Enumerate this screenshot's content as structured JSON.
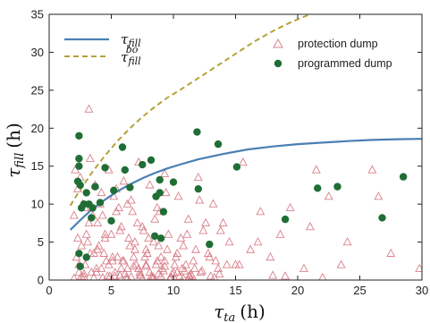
{
  "chart_data": {
    "type": "scatter",
    "xlabel": {
      "main": "τ",
      "sub": "ta",
      "unit": "(h)"
    },
    "ylabel": {
      "main": "τ",
      "sub": "fill",
      "unit": "(h)"
    },
    "xlim": [
      0,
      30
    ],
    "ylim": [
      0,
      35
    ],
    "xticks": [
      "0",
      "5",
      "10",
      "15",
      "20",
      "25",
      "30"
    ],
    "yticks": [
      "0",
      "5",
      "10",
      "15",
      "20",
      "25",
      "30",
      "35"
    ],
    "grid": false,
    "legends": {
      "curves": {
        "placement": "top-left",
        "entries": [
          {
            "main": "τ",
            "sub": "fill",
            "sup": "",
            "color": "#4a7fb5",
            "dash": "solid"
          },
          {
            "main": "τ",
            "sub": "fill",
            "sup": "bo",
            "color": "#b5a23a",
            "dash": "dashed"
          }
        ]
      },
      "points": {
        "placement": "top-right",
        "entries": [
          {
            "label": "protection dump",
            "marker": "triangle",
            "color": "#d9808a"
          },
          {
            "label": "programmed dump",
            "marker": "circle",
            "color": "#1f6e36"
          }
        ]
      }
    },
    "series": [
      {
        "name": "τ_fill",
        "type": "line",
        "color": "#4a7fb5",
        "x": [
          1.7,
          2.5,
          3.5,
          4.5,
          5.5,
          6.5,
          7.5,
          8.5,
          9.5,
          10.5,
          12,
          14,
          16,
          18,
          20,
          22,
          24,
          26,
          28,
          30
        ],
        "y": [
          6.6,
          7.9,
          9.4,
          10.6,
          11.7,
          12.6,
          13.4,
          14.1,
          14.7,
          15.2,
          15.9,
          16.6,
          17.2,
          17.6,
          17.9,
          18.1,
          18.3,
          18.45,
          18.55,
          18.6
        ]
      },
      {
        "name": "τ_fill^bo",
        "type": "line",
        "color": "#b5a23a",
        "x": [
          1.7,
          2.5,
          3.5,
          4.5,
          5.5,
          6.5,
          7.5,
          8.5,
          9.5,
          10.5,
          12,
          13.5,
          15,
          16.5,
          18,
          19.5,
          21
        ],
        "y": [
          9.8,
          11.9,
          14.3,
          16.4,
          18.3,
          20.0,
          21.5,
          22.8,
          24.0,
          25.0,
          26.6,
          28.2,
          29.8,
          31.4,
          32.8,
          34.0,
          35.0
        ]
      },
      {
        "name": "protection dump",
        "type": "scatter",
        "marker": "triangle",
        "color": "#d9808a",
        "x": [
          3.2,
          2.0,
          2.3,
          2.6,
          2.9,
          3.3,
          3.6,
          3.9,
          4.2,
          4.5,
          4.8,
          5.1,
          5.4,
          5.7,
          6.0,
          6.3,
          6.6,
          6.9,
          7.2,
          7.5,
          7.8,
          8.1,
          8.4,
          8.7,
          9.0,
          9.3,
          9.6,
          10.0,
          10.4,
          10.8,
          11.2,
          11.6,
          12.0,
          12.4,
          12.8,
          13.2,
          13.6,
          14.0,
          14.5,
          15.0,
          15.6,
          16.2,
          17.0,
          17.8,
          18.6,
          19.4,
          20.5,
          21.5,
          22.5,
          24.0,
          26.0,
          27.5,
          29.8,
          2.1,
          2.4,
          2.7,
          3.0,
          3.4,
          3.7,
          4.0,
          4.3,
          4.6,
          4.9,
          5.2,
          5.5,
          5.8,
          6.1,
          6.4,
          6.7,
          7.0,
          7.3,
          7.6,
          7.9,
          8.2,
          8.5,
          8.8,
          9.1,
          9.4,
          9.8,
          10.2,
          10.6,
          11.0,
          11.4,
          11.8,
          12.2,
          12.6,
          13.0,
          13.4,
          13.8,
          2.2,
          2.5,
          2.8,
          3.1,
          3.5,
          3.8,
          4.1,
          4.4,
          4.7,
          5.0,
          5.3,
          5.6,
          5.9,
          6.2,
          6.5,
          6.8,
          7.1,
          7.4,
          7.7,
          8.0,
          8.3,
          8.6,
          8.9,
          9.2,
          9.5,
          9.9,
          10.3,
          10.7,
          11.1,
          11.5,
          12.1,
          12.9,
          13.7,
          15.3,
          16.8,
          19.0,
          21.0,
          23.5,
          26.5,
          2.3,
          2.6,
          2.9,
          3.2,
          3.6,
          3.9,
          4.2,
          4.5,
          4.8,
          5.1,
          5.4,
          5.7,
          6.0,
          6.3,
          6.6,
          6.9,
          7.2,
          7.5,
          7.8,
          8.1,
          8.4,
          8.7,
          9.0,
          9.3,
          9.7,
          10.1,
          10.5,
          10.9,
          11.3,
          11.7,
          2.0,
          2.4,
          2.8,
          3.3,
          3.8,
          4.3,
          4.8,
          5.3,
          5.8,
          6.3,
          6.8,
          7.3,
          7.8,
          8.3,
          8.8,
          9.3,
          9.8,
          10.3,
          10.8,
          11.3,
          12.3,
          13.3,
          14.3,
          18.0,
          22.0
        ],
        "y": [
          22.5,
          8.5,
          12.0,
          4.5,
          9.5,
          16.0,
          3.5,
          7.5,
          11.5,
          5.5,
          14.5,
          2.5,
          9.0,
          6.5,
          13.0,
          1.5,
          10.5,
          4.0,
          15.5,
          7.0,
          2.0,
          12.5,
          5.0,
          9.5,
          3.0,
          14.0,
          6.0,
          1.0,
          11.0,
          4.5,
          8.0,
          2.5,
          13.5,
          6.5,
          3.5,
          10.0,
          1.5,
          7.5,
          5.0,
          2.0,
          15.5,
          4.0,
          9.0,
          3.0,
          6.0,
          9.5,
          1.5,
          14.5,
          11.0,
          5.0,
          14.5,
          3.5,
          1.5,
          14.5,
          2.0,
          10.0,
          6.0,
          1.0,
          12.5,
          4.5,
          8.5,
          2.5,
          0.5,
          11.0,
          3.0,
          7.0,
          0.8,
          5.5,
          9.0,
          2.0,
          1.0,
          6.5,
          3.5,
          0.5,
          8.0,
          4.5,
          1.5,
          11.5,
          0.3,
          3.0,
          5.5,
          2.0,
          0.8,
          4.0,
          1.0,
          7.5,
          0.5,
          2.5,
          6.5,
          3.0,
          13.5,
          0.8,
          5.0,
          8.5,
          1.5,
          10.0,
          3.5,
          0.5,
          6.0,
          1.0,
          9.5,
          2.5,
          0.3,
          4.5,
          1.8,
          7.5,
          0.6,
          3.0,
          5.5,
          0.4,
          2.0,
          9.0,
          1.2,
          4.0,
          0.8,
          3.5,
          1.5,
          6.0,
          0.5,
          10.5,
          3.0,
          0.8,
          2.0,
          5.0,
          0.5,
          7.0,
          2.0,
          11.0,
          5.5,
          0.5,
          2.0,
          7.5,
          0.3,
          4.0,
          1.5,
          6.0,
          0.2,
          3.0,
          12.0,
          0.6,
          2.5,
          10.0,
          0.4,
          5.0,
          1.5,
          0.2,
          4.0,
          1.0,
          0.3,
          2.5,
          0.5,
          1.8,
          0.2,
          2.0,
          0.5,
          1.2,
          0.4,
          1.5,
          0.2,
          1.0,
          0.4,
          3.5,
          1.0,
          0.3,
          2.0,
          0.5,
          1.5,
          0.2,
          3.0,
          0.6,
          1.8,
          0.3,
          0.8,
          2.5,
          0.4,
          1.0,
          0.2,
          0.6,
          1.2,
          0.3,
          2.0,
          0.6,
          0.3
        ]
      },
      {
        "name": "programmed dump",
        "type": "scatter",
        "marker": "circle",
        "color": "#1f6e36",
        "x": [
          2.4,
          2.4,
          2.4,
          2.3,
          2.5,
          2.6,
          2.8,
          3.0,
          3.2,
          3.4,
          2.4,
          2.5,
          3.0,
          3.5,
          4.5,
          5.0,
          5.2,
          5.9,
          6.1,
          6.5,
          7.5,
          8.2,
          8.6,
          8.9,
          8.9,
          9.0,
          9.2,
          10.0,
          11.9,
          12.0,
          12.9,
          13.6,
          15.1,
          19.0,
          21.6,
          23.2,
          26.8,
          28.5,
          8.5,
          4.1,
          3.7
        ],
        "y": [
          19.0,
          16.0,
          15.0,
          13.0,
          12.5,
          9.5,
          10.0,
          11.5,
          10.0,
          8.2,
          3.5,
          1.8,
          3.0,
          9.5,
          14.8,
          7.8,
          11.8,
          17.5,
          14.5,
          12.2,
          15.2,
          15.8,
          11.0,
          11.5,
          13.2,
          5.5,
          9.0,
          12.9,
          19.5,
          12.0,
          4.7,
          17.9,
          14.9,
          8.0,
          12.1,
          12.3,
          8.2,
          13.6,
          5.8,
          10.2,
          12.3
        ]
      }
    ]
  }
}
